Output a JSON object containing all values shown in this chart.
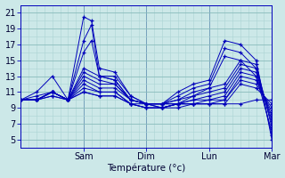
{
  "xlabel": "Température (°c)",
  "background_color": "#cce8e8",
  "grid_minor_color": "#aad4d4",
  "grid_major_color": "#88bbbb",
  "line_color": "#0000bb",
  "xlim": [
    0,
    96
  ],
  "ylim": [
    4,
    22
  ],
  "yticks": [
    5,
    7,
    9,
    11,
    13,
    15,
    17,
    19,
    21
  ],
  "xtick_positions": [
    24,
    48,
    72,
    96
  ],
  "xtick_labels": [
    "Sam",
    "Dim",
    "Lun",
    "Mar"
  ],
  "series": [
    {
      "x": [
        0,
        6,
        12,
        18,
        24,
        27,
        30,
        36,
        42,
        48,
        54,
        60,
        66,
        72,
        78,
        84,
        90,
        96
      ],
      "y": [
        10,
        11,
        13,
        10,
        20.5,
        20,
        14,
        13.5,
        10.5,
        9.5,
        9.5,
        11,
        12,
        12.5,
        17.5,
        17,
        15,
        5
      ]
    },
    {
      "x": [
        0,
        6,
        12,
        18,
        24,
        27,
        30,
        36,
        42,
        48,
        54,
        60,
        66,
        72,
        78,
        84,
        90,
        96
      ],
      "y": [
        10,
        10.5,
        11,
        10,
        17.5,
        19.5,
        13,
        13,
        10.5,
        9.5,
        9.5,
        10.5,
        11.5,
        12,
        16.5,
        16,
        14,
        5.5
      ]
    },
    {
      "x": [
        0,
        6,
        12,
        18,
        24,
        27,
        30,
        36,
        42,
        48,
        54,
        60,
        66,
        72,
        78,
        84,
        90,
        96
      ],
      "y": [
        10,
        10,
        11,
        10,
        16,
        17.5,
        13,
        12.5,
        10,
        9.5,
        9.5,
        10,
        11,
        11.5,
        15.5,
        15,
        13,
        6
      ]
    },
    {
      "x": [
        0,
        6,
        12,
        18,
        24,
        30,
        36,
        42,
        48,
        54,
        60,
        66,
        72,
        78,
        84,
        90,
        96
      ],
      "y": [
        10,
        10,
        11,
        10,
        14,
        13,
        12.5,
        10,
        9.5,
        9.5,
        10,
        10.5,
        11.5,
        12,
        15,
        14.5,
        6.5
      ]
    },
    {
      "x": [
        0,
        6,
        12,
        18,
        24,
        30,
        36,
        42,
        48,
        54,
        60,
        66,
        72,
        78,
        84,
        90,
        96
      ],
      "y": [
        10,
        10,
        11,
        10,
        13.5,
        12.5,
        12,
        10,
        9.5,
        9.5,
        9.5,
        10.5,
        11,
        11.5,
        14.5,
        14,
        7
      ]
    },
    {
      "x": [
        0,
        6,
        12,
        18,
        24,
        30,
        36,
        42,
        48,
        54,
        60,
        66,
        72,
        78,
        84,
        90,
        96
      ],
      "y": [
        10,
        10,
        11,
        10,
        13,
        12,
        12,
        10,
        9.5,
        9.5,
        9.5,
        10,
        10.5,
        11,
        14,
        13.5,
        7.5
      ]
    },
    {
      "x": [
        0,
        6,
        12,
        18,
        24,
        30,
        36,
        42,
        48,
        54,
        60,
        66,
        72,
        78,
        84,
        90,
        96
      ],
      "y": [
        10,
        10,
        11,
        10,
        12.5,
        11.5,
        11.5,
        10,
        9.5,
        9.0,
        9.5,
        10,
        10,
        10.5,
        13.5,
        13,
        8
      ]
    },
    {
      "x": [
        0,
        6,
        12,
        18,
        24,
        30,
        36,
        42,
        48,
        54,
        60,
        66,
        72,
        78,
        84,
        90,
        96
      ],
      "y": [
        10,
        10,
        11,
        10,
        12,
        11,
        11,
        9.5,
        9.5,
        9.0,
        9.5,
        9.5,
        10,
        10,
        13,
        12.5,
        8.5
      ]
    },
    {
      "x": [
        0,
        6,
        12,
        18,
        24,
        30,
        36,
        42,
        48,
        54,
        60,
        66,
        72,
        78,
        84,
        90,
        96
      ],
      "y": [
        10,
        10,
        11,
        10,
        11.5,
        11,
        11,
        9.5,
        9.0,
        9.0,
        9.5,
        9.5,
        9.5,
        10,
        12.5,
        12,
        9
      ]
    },
    {
      "x": [
        0,
        6,
        12,
        18,
        24,
        30,
        36,
        42,
        48,
        54,
        60,
        66,
        72,
        78,
        84,
        90,
        96
      ],
      "y": [
        10,
        10,
        10.5,
        10,
        11,
        10.5,
        10.5,
        9.5,
        9.0,
        9.0,
        9.5,
        9.5,
        9.5,
        9.5,
        12,
        11.5,
        9.5
      ]
    },
    {
      "x": [
        0,
        6,
        12,
        18,
        24,
        30,
        36,
        42,
        48,
        54,
        60,
        66,
        72,
        78,
        84,
        90,
        96
      ],
      "y": [
        10,
        10,
        10.5,
        10,
        11,
        10.5,
        10.5,
        9.5,
        9.0,
        9.0,
        9.0,
        9.5,
        9.5,
        9.5,
        9.5,
        10,
        10
      ]
    }
  ]
}
